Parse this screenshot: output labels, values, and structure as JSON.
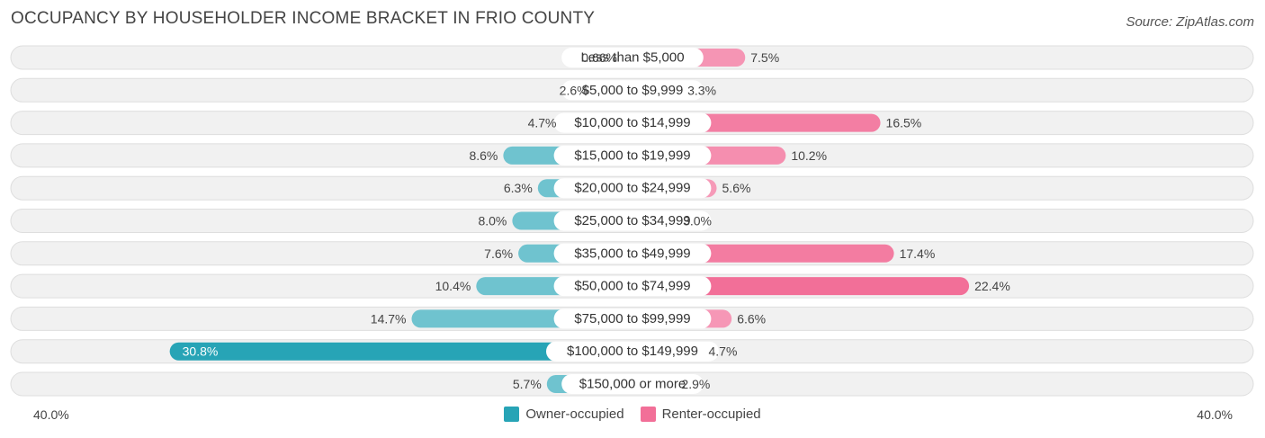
{
  "title": "OCCUPANCY BY HOUSEHOLDER INCOME BRACKET IN FRIO COUNTY",
  "source": "Source: ZipAtlas.com",
  "axis": {
    "left_label": "40.0%",
    "right_label": "40.0%"
  },
  "legend": {
    "owner": "Owner-occupied",
    "renter": "Renter-occupied"
  },
  "colors": {
    "owner": "#6fc3cf",
    "owner_highlight": "#27a4b6",
    "renter_light": "#f7a8c2",
    "renter": "#f26f98",
    "row_bg": "#f1f1f1",
    "row_border": "#dedede"
  },
  "chart_data": {
    "type": "bar",
    "orientation": "horizontal-diverging",
    "max": 40.0,
    "categories": [
      "Less than $5,000",
      "$5,000 to $9,999",
      "$10,000 to $14,999",
      "$15,000 to $19,999",
      "$20,000 to $24,999",
      "$25,000 to $34,999",
      "$35,000 to $49,999",
      "$50,000 to $74,999",
      "$75,000 to $99,999",
      "$100,000 to $149,999",
      "$150,000 or more"
    ],
    "series": [
      {
        "name": "Owner-occupied",
        "values": [
          0.66,
          2.6,
          4.7,
          8.6,
          6.3,
          8.0,
          7.6,
          10.4,
          14.7,
          30.8,
          5.7
        ],
        "labels": [
          "0.66%",
          "2.6%",
          "4.7%",
          "8.6%",
          "6.3%",
          "8.0%",
          "7.6%",
          "10.4%",
          "14.7%",
          "30.8%",
          "5.7%"
        ]
      },
      {
        "name": "Renter-occupied",
        "values": [
          7.5,
          3.3,
          16.5,
          10.2,
          5.6,
          3.0,
          17.4,
          22.4,
          6.6,
          4.7,
          2.9
        ],
        "labels": [
          "7.5%",
          "3.3%",
          "16.5%",
          "10.2%",
          "5.6%",
          "3.0%",
          "17.4%",
          "22.4%",
          "6.6%",
          "4.7%",
          "2.9%"
        ]
      }
    ]
  }
}
